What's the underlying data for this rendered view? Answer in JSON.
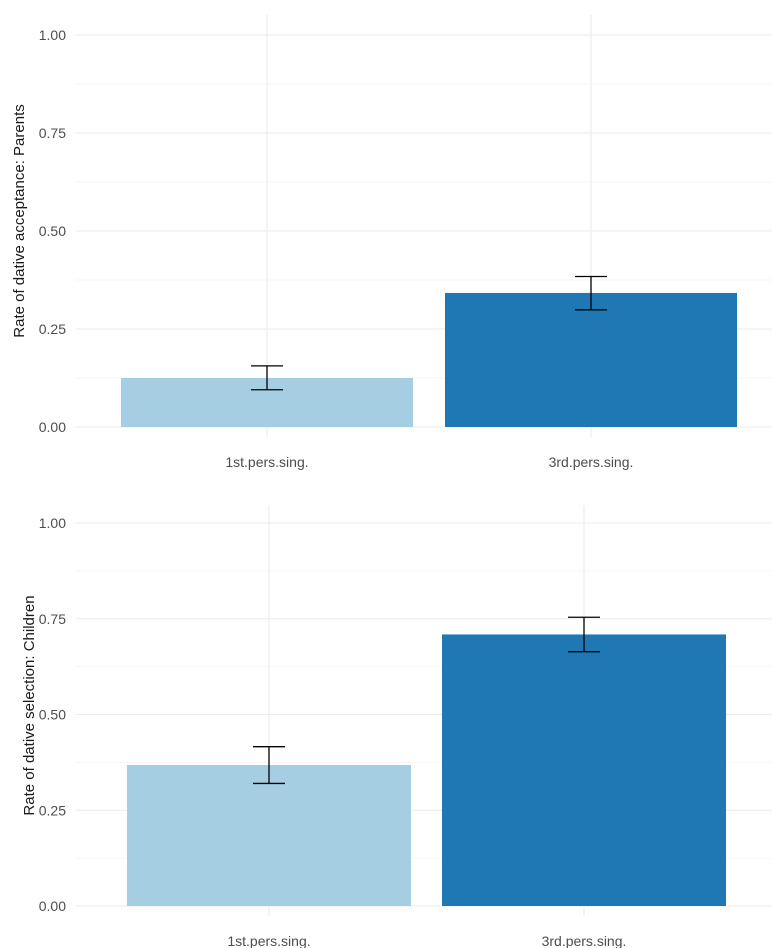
{
  "chart_data": [
    {
      "type": "bar",
      "ylabel": "Rate of dative acceptance: Parents",
      "xlabel": "",
      "categories": [
        "1st.pers.sing.",
        "3rd.pers.sing."
      ],
      "values": [
        0.125,
        0.342
      ],
      "error_low": [
        0.095,
        0.299
      ],
      "error_high": [
        0.156,
        0.384
      ],
      "colors": [
        "#a6cee3",
        "#1f78b4"
      ],
      "ylim": [
        0,
        1.05
      ],
      "yticks": [
        0,
        0.25,
        0.5,
        0.75,
        1.0
      ],
      "ytick_labels": [
        "0.00",
        "0.25",
        "0.50",
        "0.75",
        "1.00"
      ],
      "grid": true
    },
    {
      "type": "bar",
      "ylabel": "Rate of dative selection: Children",
      "xlabel": "",
      "categories": [
        "1st.pers.sing.",
        "3rd.pers.sing."
      ],
      "values": [
        0.368,
        0.709
      ],
      "error_low": [
        0.32,
        0.664
      ],
      "error_high": [
        0.416,
        0.754
      ],
      "colors": [
        "#a6cee3",
        "#1f78b4"
      ],
      "ylim": [
        0,
        1.05
      ],
      "yticks": [
        0,
        0.25,
        0.5,
        0.75,
        1.0
      ],
      "ytick_labels": [
        "0.00",
        "0.25",
        "0.50",
        "0.75",
        "1.00"
      ],
      "grid": true
    }
  ]
}
